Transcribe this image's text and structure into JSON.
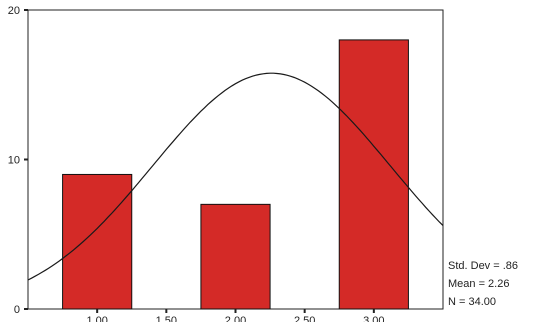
{
  "chart_data": {
    "type": "bar",
    "subtype": "histogram",
    "x_ticks": [
      "1.00",
      "1.50",
      "2.00",
      "2.50",
      "3.00"
    ],
    "y_ticks": [
      "0",
      "10",
      "20"
    ],
    "ylim": [
      0,
      20
    ],
    "bins": [
      {
        "center": 1.0,
        "count": 9
      },
      {
        "center": 2.0,
        "count": 7
      },
      {
        "center": 3.0,
        "count": 18
      }
    ],
    "normal_curve": {
      "mean": 2.26,
      "std": 0.86,
      "n": 34
    },
    "bar_color": "#d42a27",
    "grid": false
  },
  "stats": {
    "std_dev": "Std. Dev = .86",
    "mean": "Mean = 2.26",
    "n": "N = 34.00"
  }
}
